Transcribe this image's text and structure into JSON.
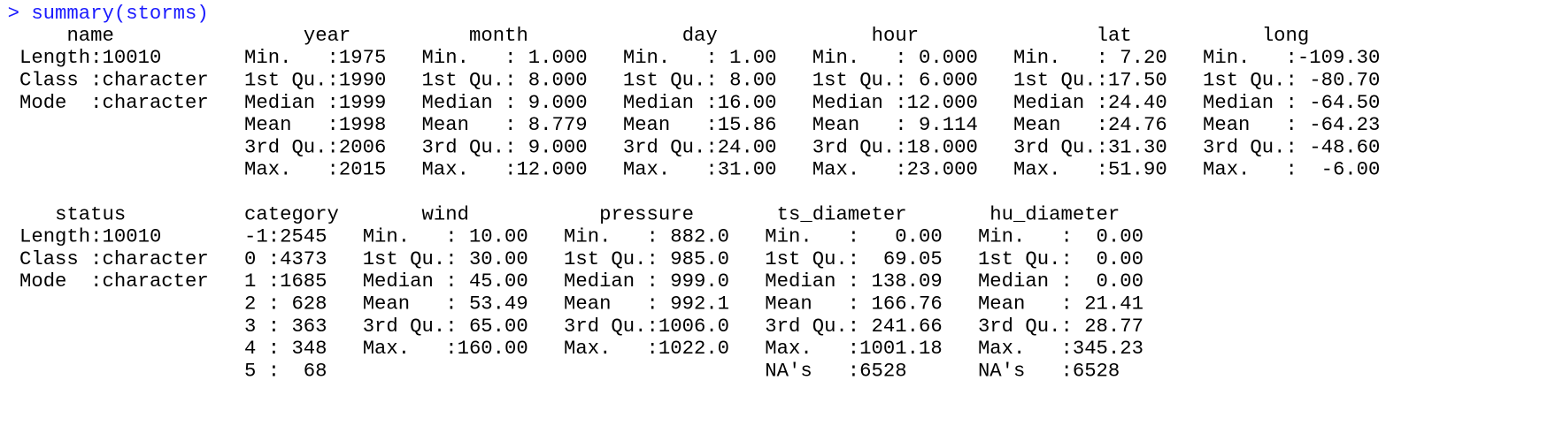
{
  "console": {
    "prompt": "> summary(storms)",
    "blocks": [
      {
        "columns": [
          {
            "header": "name",
            "cells": [
              "Length:10010",
              "Class :character",
              "Mode  :character"
            ]
          },
          {
            "header": "year",
            "cells": [
              "Min.   :1975",
              "1st Qu.:1990",
              "Median :1999",
              "Mean   :1998",
              "3rd Qu.:2006",
              "Max.   :2015"
            ]
          },
          {
            "header": "month",
            "cells": [
              "Min.   : 1.000",
              "1st Qu.: 8.000",
              "Median : 9.000",
              "Mean   : 8.779",
              "3rd Qu.: 9.000",
              "Max.   :12.000"
            ]
          },
          {
            "header": "day",
            "cells": [
              "Min.   : 1.00",
              "1st Qu.: 8.00",
              "Median :16.00",
              "Mean   :15.86",
              "3rd Qu.:24.00",
              "Max.   :31.00"
            ]
          },
          {
            "header": "hour",
            "cells": [
              "Min.   : 0.000",
              "1st Qu.: 6.000",
              "Median :12.000",
              "Mean   : 9.114",
              "3rd Qu.:18.000",
              "Max.   :23.000"
            ]
          },
          {
            "header": "lat",
            "cells": [
              "Min.   : 7.20",
              "1st Qu.:17.50",
              "Median :24.40",
              "Mean   :24.76",
              "3rd Qu.:31.30",
              "Max.   :51.90"
            ]
          },
          {
            "header": "long",
            "cells": [
              "Min.   :-109.30",
              "1st Qu.: -80.70",
              "Median : -64.50",
              "Mean   : -64.23",
              "3rd Qu.: -48.60",
              "Max.   :  -6.00"
            ]
          }
        ]
      },
      {
        "columns": [
          {
            "header": "status",
            "cells": [
              "Length:10010",
              "Class :character",
              "Mode  :character"
            ]
          },
          {
            "header": "category",
            "cells": [
              "-1:2545",
              "0 :4373",
              "1 :1685",
              "2 : 628",
              "3 : 363",
              "4 : 348",
              "5 :  68"
            ]
          },
          {
            "header": "wind",
            "cells": [
              "Min.   : 10.00",
              "1st Qu.: 30.00",
              "Median : 45.00",
              "Mean   : 53.49",
              "3rd Qu.: 65.00",
              "Max.   :160.00"
            ]
          },
          {
            "header": "pressure",
            "cells": [
              "Min.   : 882.0",
              "1st Qu.: 985.0",
              "Median : 999.0",
              "Mean   : 992.1",
              "3rd Qu.:1006.0",
              "Max.   :1022.0"
            ]
          },
          {
            "header": "ts_diameter",
            "cells": [
              "Min.   :   0.00",
              "1st Qu.:  69.05",
              "Median : 138.09",
              "Mean   : 166.76",
              "3rd Qu.: 241.66",
              "Max.   :1001.18",
              "NA's   :6528"
            ]
          },
          {
            "header": "hu_diameter",
            "cells": [
              "Min.   :  0.00",
              "1st Qu.:  0.00",
              "Median :  0.00",
              "Mean   : 21.41",
              "3rd Qu.: 28.77",
              "Max.   :345.23",
              "NA's   :6528"
            ]
          }
        ]
      }
    ]
  }
}
